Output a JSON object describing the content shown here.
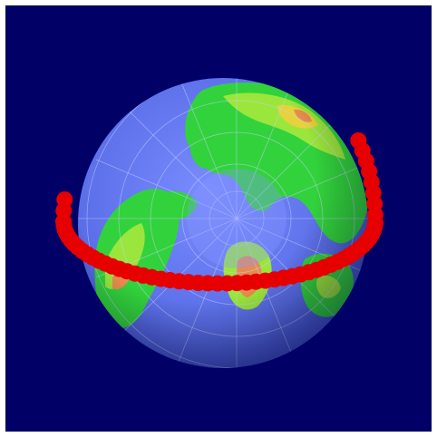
{
  "scene": {
    "background_color": "#000066",
    "frame_color": "#ffffff",
    "subject": "globe-north-polar-view",
    "ocean_color": "#5a6ee8",
    "land_colors": [
      "#32d23c",
      "#9be63c",
      "#e6d23c",
      "#e68c50"
    ],
    "orbit_color": "#e60000"
  }
}
